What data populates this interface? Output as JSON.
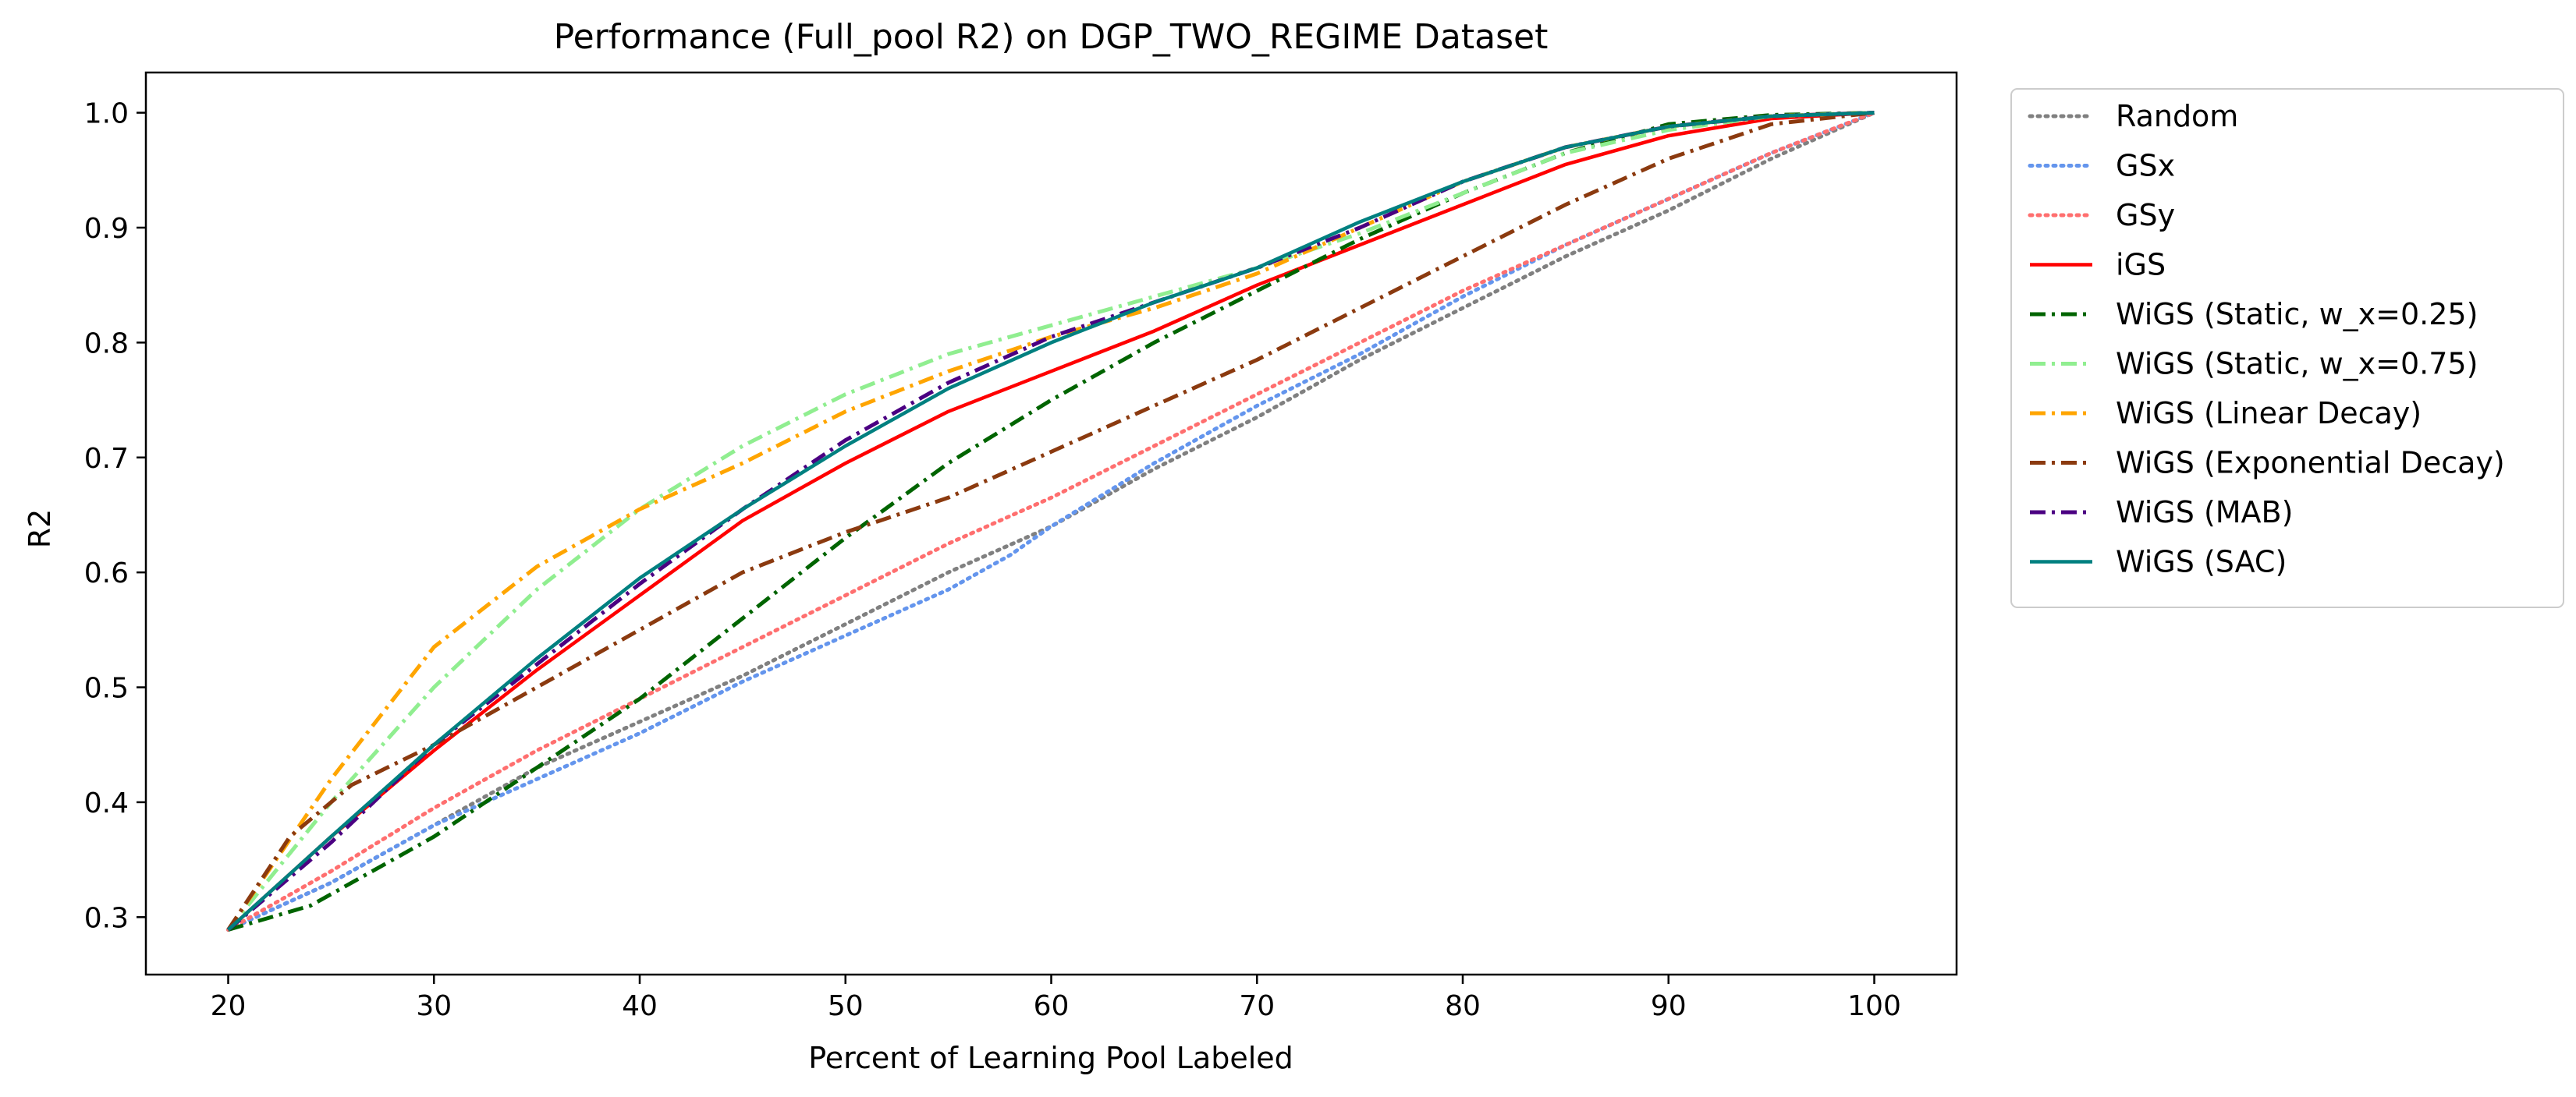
{
  "chart_data": {
    "type": "line",
    "title": "Performance (Full_pool R2) on DGP_TWO_REGIME Dataset",
    "xlabel": "Percent of Learning Pool Labeled",
    "ylabel": "R2",
    "xlim": [
      16,
      104
    ],
    "ylim": [
      0.25,
      1.035
    ],
    "xticks": [
      20,
      30,
      40,
      50,
      60,
      70,
      80,
      90,
      100
    ],
    "yticks": [
      0.3,
      0.4,
      0.5,
      0.6,
      0.7,
      0.8,
      0.9,
      1.0
    ],
    "grid": false,
    "legend_position": "outside right, top",
    "series": [
      {
        "name": "Random",
        "color": "#808080",
        "dash": "dotted",
        "x": [
          20,
          25,
          30,
          35,
          40,
          45,
          50,
          55,
          60,
          65,
          70,
          75,
          80,
          85,
          90,
          95,
          100
        ],
        "y": [
          0.289,
          0.33,
          0.38,
          0.43,
          0.47,
          0.51,
          0.555,
          0.6,
          0.64,
          0.69,
          0.735,
          0.785,
          0.83,
          0.875,
          0.915,
          0.96,
          1.0
        ]
      },
      {
        "name": "GSx",
        "color": "#6495ED",
        "dash": "dotted",
        "x": [
          20,
          25,
          30,
          35,
          40,
          45,
          50,
          55,
          56,
          58,
          60,
          65,
          70,
          75,
          80,
          85,
          90,
          95,
          100
        ],
        "y": [
          0.289,
          0.33,
          0.38,
          0.42,
          0.46,
          0.505,
          0.545,
          0.585,
          0.595,
          0.615,
          0.64,
          0.695,
          0.745,
          0.79,
          0.84,
          0.885,
          0.925,
          0.965,
          1.0
        ]
      },
      {
        "name": "GSy",
        "color": "#FF6F6F",
        "dash": "dotted",
        "x": [
          20,
          25,
          30,
          35,
          40,
          45,
          50,
          55,
          60,
          65,
          70,
          75,
          80,
          85,
          90,
          95,
          100
        ],
        "y": [
          0.289,
          0.34,
          0.395,
          0.445,
          0.49,
          0.535,
          0.58,
          0.625,
          0.665,
          0.71,
          0.755,
          0.8,
          0.845,
          0.885,
          0.925,
          0.965,
          1.0
        ]
      },
      {
        "name": "iGS",
        "color": "#FF0000",
        "dash": "solid",
        "x": [
          20,
          25,
          30,
          35,
          40,
          45,
          50,
          55,
          60,
          65,
          70,
          75,
          80,
          85,
          90,
          95,
          100
        ],
        "y": [
          0.289,
          0.37,
          0.445,
          0.515,
          0.58,
          0.645,
          0.695,
          0.74,
          0.775,
          0.81,
          0.85,
          0.885,
          0.92,
          0.955,
          0.98,
          0.995,
          1.0
        ]
      },
      {
        "name": "WiGS (Static, w_x=0.25)",
        "color": "#006400",
        "dash": "dashdot",
        "x": [
          20,
          24,
          27,
          30,
          35,
          40,
          45,
          50,
          55,
          60,
          65,
          70,
          75,
          80,
          85,
          90,
          95,
          100
        ],
        "y": [
          0.289,
          0.31,
          0.34,
          0.37,
          0.43,
          0.49,
          0.56,
          0.63,
          0.695,
          0.75,
          0.8,
          0.845,
          0.89,
          0.93,
          0.965,
          0.99,
          0.998,
          1.0
        ]
      },
      {
        "name": "WiGS (Static, w_x=0.75)",
        "color": "#90EE90",
        "dash": "dashdot",
        "x": [
          20,
          25,
          30,
          35,
          40,
          45,
          50,
          55,
          60,
          65,
          70,
          75,
          80,
          85,
          90,
          95,
          100
        ],
        "y": [
          0.289,
          0.4,
          0.5,
          0.585,
          0.655,
          0.71,
          0.755,
          0.79,
          0.815,
          0.84,
          0.865,
          0.895,
          0.93,
          0.965,
          0.985,
          0.997,
          1.0
        ]
      },
      {
        "name": "WiGS (Linear Decay)",
        "color": "#FFA500",
        "dash": "dashdot",
        "x": [
          20,
          25,
          30,
          35,
          40,
          45,
          50,
          55,
          60,
          65,
          70,
          75,
          80,
          85,
          90,
          95,
          100
        ],
        "y": [
          0.289,
          0.42,
          0.535,
          0.605,
          0.655,
          0.695,
          0.74,
          0.775,
          0.805,
          0.83,
          0.86,
          0.9,
          0.94,
          0.97,
          0.988,
          0.997,
          1.0
        ]
      },
      {
        "name": "WiGS (Exponential Decay)",
        "color": "#8B3A0F",
        "dash": "dashdot",
        "x": [
          20,
          23,
          26,
          30,
          35,
          40,
          45,
          50,
          55,
          60,
          65,
          70,
          75,
          80,
          85,
          90,
          95,
          100
        ],
        "y": [
          0.289,
          0.37,
          0.415,
          0.45,
          0.5,
          0.55,
          0.6,
          0.635,
          0.665,
          0.705,
          0.745,
          0.785,
          0.83,
          0.875,
          0.92,
          0.96,
          0.99,
          1.0
        ]
      },
      {
        "name": "WiGS (MAB)",
        "color": "#4B0082",
        "dash": "dashdot",
        "x": [
          20,
          25,
          30,
          35,
          40,
          45,
          50,
          55,
          60,
          65,
          70,
          75,
          80,
          85,
          90,
          95,
          100
        ],
        "y": [
          0.289,
          0.365,
          0.45,
          0.52,
          0.59,
          0.655,
          0.715,
          0.765,
          0.805,
          0.835,
          0.865,
          0.9,
          0.94,
          0.97,
          0.988,
          0.997,
          1.0
        ]
      },
      {
        "name": "WiGS (SAC)",
        "color": "#008080",
        "dash": "solid",
        "x": [
          20,
          25,
          30,
          35,
          40,
          45,
          50,
          55,
          60,
          65,
          70,
          75,
          80,
          85,
          90,
          95,
          100
        ],
        "y": [
          0.289,
          0.37,
          0.45,
          0.525,
          0.595,
          0.655,
          0.71,
          0.76,
          0.8,
          0.835,
          0.865,
          0.905,
          0.94,
          0.97,
          0.988,
          0.997,
          1.0
        ]
      }
    ]
  }
}
